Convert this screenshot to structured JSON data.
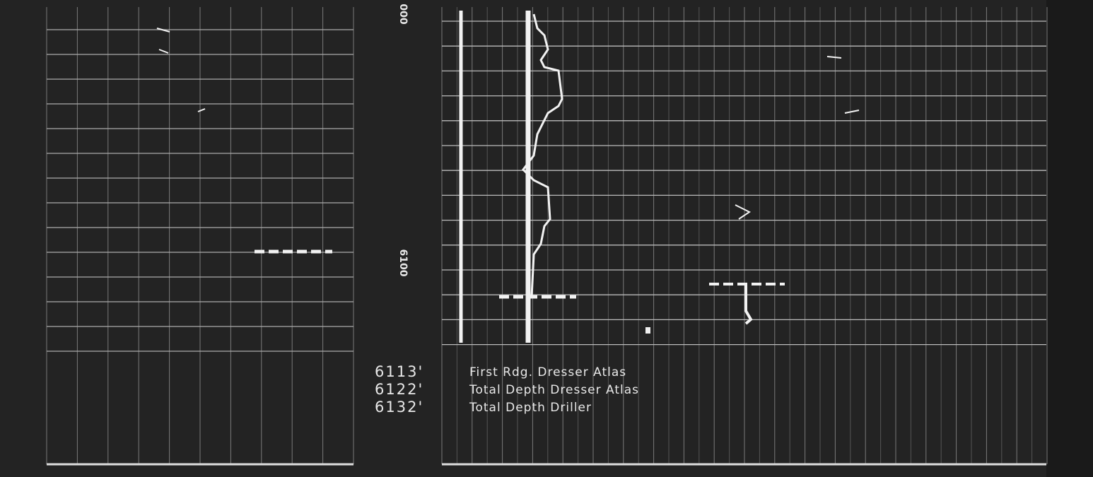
{
  "depth_labels": {
    "top": "000",
    "middle": "6100"
  },
  "notes": [
    {
      "depth": "6113'",
      "text": "First Rdg. Dresser Atlas"
    },
    {
      "depth": "6122'",
      "text": "Total Depth Dresser Atlas"
    },
    {
      "depth": "6132'",
      "text": "Total Depth Driller"
    }
  ]
}
